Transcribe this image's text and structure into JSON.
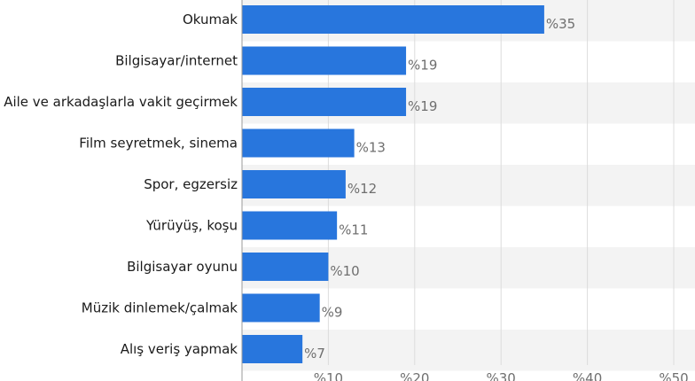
{
  "chart_data": {
    "type": "bar",
    "orientation": "horizontal",
    "categories": [
      "Okumak",
      "Bilgisayar/internet",
      "Aile ve arkadaşlarla vakit geçirmek",
      "Film seyretmek, sinema",
      "Spor, egzersiz",
      "Yürüyüş, koşu",
      "Bilgisayar oyunu",
      "Müzik dinlemek/çalmak",
      "Alış veriş yapmak"
    ],
    "values": [
      35,
      19,
      19,
      13,
      12,
      11,
      10,
      9,
      7
    ],
    "value_labels": [
      "%35",
      "%19",
      "%19",
      "%13",
      "%12",
      "%11",
      "%10",
      "%9",
      "%7"
    ],
    "xlim": [
      0,
      50
    ],
    "xticks": [
      10,
      20,
      30,
      40,
      50
    ],
    "xtick_labels": [
      "%10",
      "%20",
      "%30",
      "%40",
      "%50"
    ],
    "bar_color": "#2876dd",
    "grid": true,
    "alternating_row_shading": true,
    "title": "",
    "xlabel": "",
    "ylabel": ""
  }
}
